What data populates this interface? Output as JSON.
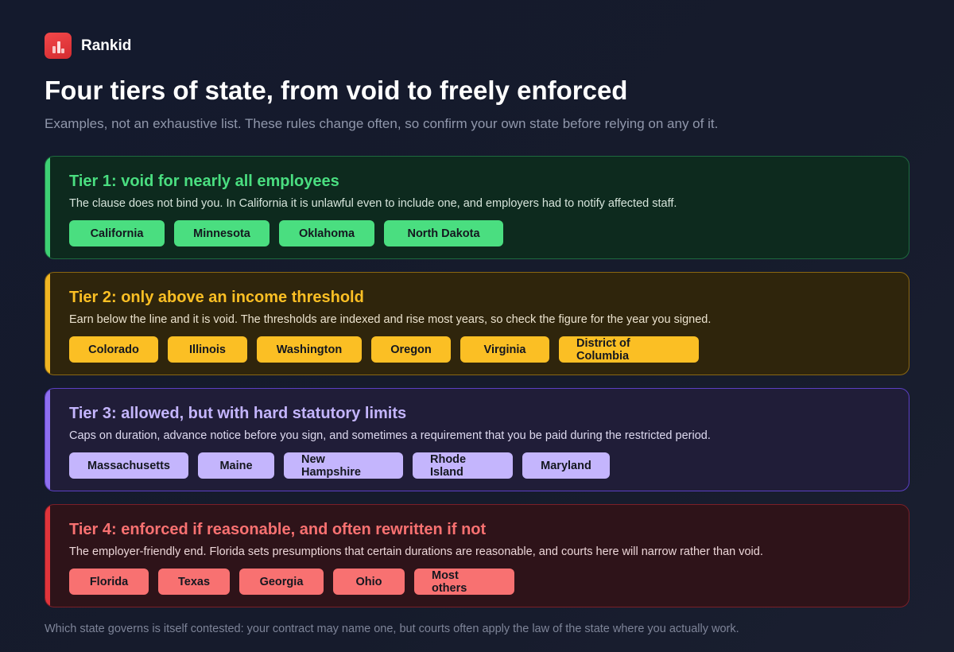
{
  "brand": {
    "name": "Rankid",
    "logo_icon": "bar-chart-icon",
    "logo_color": "#e33a3d"
  },
  "title": "Four tiers of state, from void to freely enforced",
  "subtitle": "Examples, not an exhaustive list. These rules change often, so confirm your own state before relying on any of it.",
  "tiers": [
    {
      "heading": "Tier 1: void for nearly all employees",
      "description": "The clause does not bind you. In California it is unlawful even to include one, and employers had to notify affected staff.",
      "accent": "#4ade80",
      "states": [
        "California",
        "Minnesota",
        "Oklahoma",
        "North Dakota"
      ]
    },
    {
      "heading": "Tier 2: only above an income threshold",
      "description": "Earn below the line and it is void. The thresholds are indexed and rise most years, so check the figure for the year you signed.",
      "accent": "#fbbf24",
      "states": [
        "Colorado",
        "Illinois",
        "Washington",
        "Oregon",
        "Virginia",
        "District of Columbia"
      ]
    },
    {
      "heading": "Tier 3: allowed, but with hard statutory limits",
      "description": "Caps on duration, advance notice before you sign, and sometimes a requirement that you be paid during the restricted period.",
      "accent": "#c4b5fd",
      "states": [
        "Massachusetts",
        "Maine",
        "New Hampshire",
        "Rhode Island",
        "Maryland"
      ]
    },
    {
      "heading": "Tier 4: enforced if reasonable, and often rewritten if not",
      "description": "The employer-friendly end. Florida sets presumptions that certain durations are reasonable, and courts here will narrow rather than void.",
      "accent": "#f87171",
      "states": [
        "Florida",
        "Texas",
        "Georgia",
        "Ohio",
        "Most others"
      ]
    }
  ],
  "footer": "Which state governs is itself contested: your contract may name one, but courts often apply the law of the state where you actually work."
}
